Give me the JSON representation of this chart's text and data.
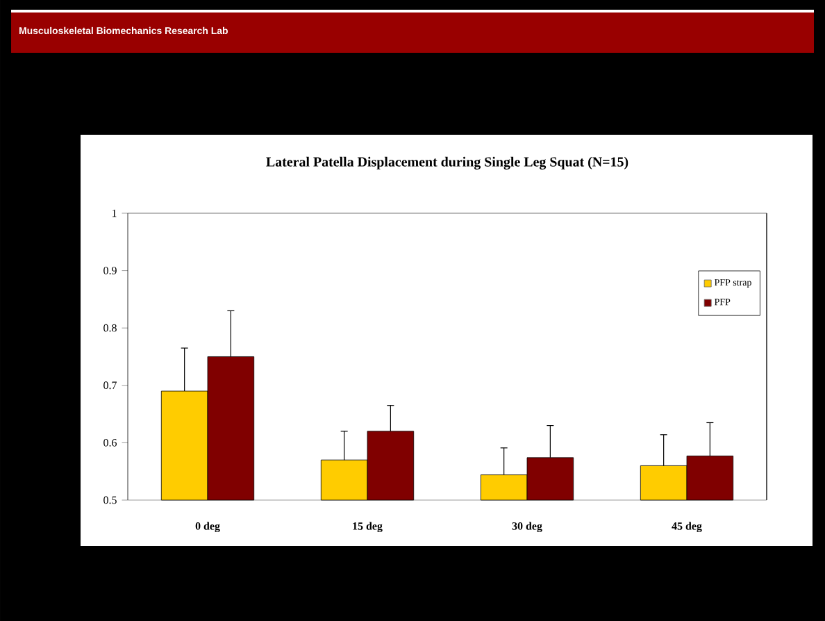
{
  "chart_data": {
    "type": "bar",
    "title": "Lateral Patella Displacement during Single Leg Squat (N=15)",
    "annotations": [
      "Musculoskeletal Biomechanics Research Lab"
    ],
    "categories": [
      "0 deg",
      "15 deg",
      "30 deg",
      "45 deg"
    ],
    "series": [
      {
        "name": "PFP strap",
        "color": "#ffcc00",
        "values": [
          0.69,
          0.57,
          0.544,
          0.56
        ],
        "errors": [
          [
            0.69,
            0.765
          ],
          [
            0.57,
            0.62
          ],
          [
            0.544,
            0.591
          ],
          [
            0.56,
            0.614
          ]
        ]
      },
      {
        "name": "PFP",
        "color": "#800000",
        "values": [
          0.75,
          0.62,
          0.574,
          0.577
        ],
        "errors": [
          [
            0.75,
            0.83
          ],
          [
            0.62,
            0.665
          ],
          [
            0.574,
            0.63
          ],
          [
            0.577,
            0.635
          ]
        ]
      }
    ],
    "ylim": [
      0.5,
      1
    ],
    "yticks": [
      0.5,
      0.6,
      0.7,
      0.8,
      0.9,
      1
    ],
    "legend": "right"
  }
}
